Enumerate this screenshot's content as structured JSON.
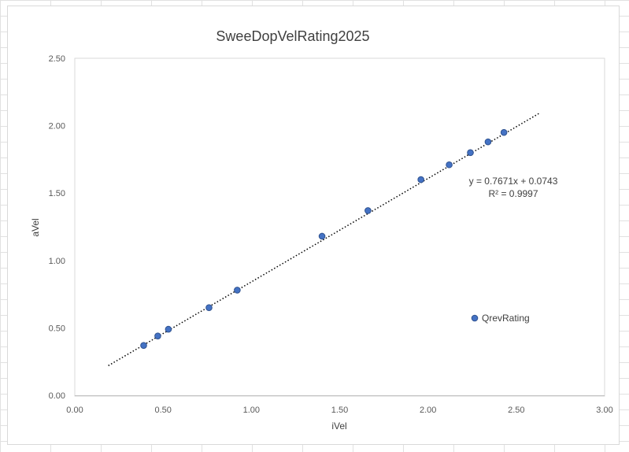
{
  "chart_data": {
    "type": "scatter",
    "title": "SweeDopVelRating2025",
    "xlabel": "iVel",
    "ylabel": "aVel",
    "xlim": [
      0,
      3
    ],
    "ylim": [
      0,
      2.5
    ],
    "x_ticks": [
      "0.00",
      "0.50",
      "1.00",
      "1.50",
      "2.00",
      "2.50",
      "3.00"
    ],
    "y_ticks": [
      "0.00",
      "0.50",
      "1.00",
      "1.50",
      "2.00",
      "2.50"
    ],
    "grid": false,
    "legend": "right",
    "series": [
      {
        "name": "QrevRating",
        "color": "#4472c4",
        "marker": "circle",
        "points": [
          {
            "x": 0.39,
            "y": 0.37
          },
          {
            "x": 0.47,
            "y": 0.44
          },
          {
            "x": 0.53,
            "y": 0.49
          },
          {
            "x": 0.76,
            "y": 0.65
          },
          {
            "x": 0.92,
            "y": 0.78
          },
          {
            "x": 1.4,
            "y": 1.18
          },
          {
            "x": 1.66,
            "y": 1.37
          },
          {
            "x": 1.96,
            "y": 1.6
          },
          {
            "x": 2.12,
            "y": 1.71
          },
          {
            "x": 2.24,
            "y": 1.8
          },
          {
            "x": 2.34,
            "y": 1.88
          },
          {
            "x": 2.43,
            "y": 1.95
          }
        ]
      }
    ],
    "trendline": {
      "type": "linear",
      "slope": 0.7671,
      "intercept": 0.0743,
      "x_range": [
        0.19,
        2.63
      ],
      "style": "dotted",
      "color": "#000000",
      "equation_label": "y = 0.7671x + 0.0743",
      "r2_label": "R² = 0.9997"
    }
  }
}
